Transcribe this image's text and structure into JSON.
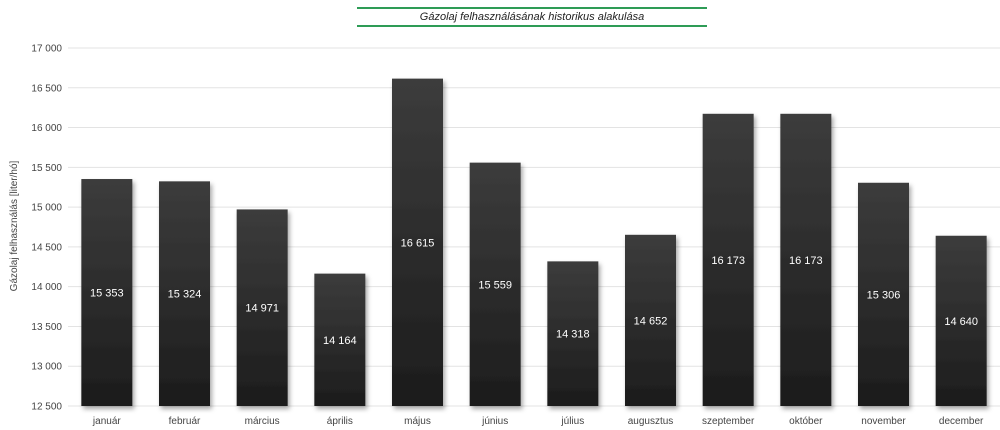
{
  "chart_data": {
    "type": "bar",
    "title": "Gázolaj felhasználásának historikus alakulása",
    "ylabel": "Gázolaj felhasználás [liter/hó]",
    "xlabel": "",
    "ylim": [
      12500,
      17000
    ],
    "ytick_step": 500,
    "ytick_labels": [
      "12 500",
      "13 000",
      "13 500",
      "14 000",
      "14 500",
      "15 000",
      "15 500",
      "16 000",
      "16 500",
      "17 000"
    ],
    "grid": true,
    "legend": "none",
    "categories": [
      "január",
      "február",
      "március",
      "április",
      "május",
      "június",
      "július",
      "augusztus",
      "szeptember",
      "október",
      "november",
      "december"
    ],
    "values": [
      15353,
      15324,
      14971,
      14164,
      16615,
      15559,
      14318,
      14652,
      16173,
      16173,
      15306,
      14640
    ],
    "value_labels": [
      "15 353",
      "15 324",
      "14 971",
      "14 164",
      "16 615",
      "15 559",
      "14 318",
      "14 652",
      "16 173",
      "16 173",
      "15 306",
      "14 640"
    ],
    "colors": {
      "bar_top": "#3c3c3c",
      "bar_bottom": "#1c1c1c",
      "title_rule": "#2e9c56"
    }
  }
}
